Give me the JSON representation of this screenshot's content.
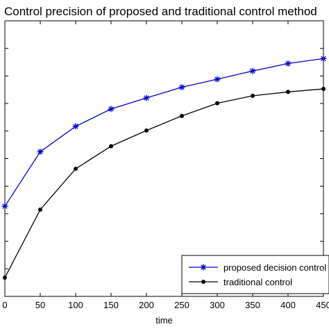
{
  "chart_data": {
    "type": "line",
    "title": "Control precision of proposed and traditional control method",
    "xlabel": "time",
    "ylabel": "",
    "x": [
      0,
      50,
      100,
      150,
      200,
      250,
      300,
      350,
      400,
      450
    ],
    "x_ticks": [
      "0",
      "50",
      "100",
      "150",
      "200",
      "250",
      "300",
      "350",
      "400",
      "450"
    ],
    "xlim": [
      0,
      450
    ],
    "ylim": [
      0,
      1
    ],
    "y_ticks": [
      0.1,
      0.2,
      0.3,
      0.4,
      0.5,
      0.6,
      0.7,
      0.8,
      0.9
    ],
    "series": [
      {
        "name": "proposed decision control",
        "color": "#0000cc",
        "marker": "star",
        "values": [
          0.327,
          0.525,
          0.617,
          0.68,
          0.72,
          0.759,
          0.788,
          0.818,
          0.845,
          0.863
        ]
      },
      {
        "name": "traditional control",
        "color": "#000000",
        "marker": "dot",
        "values": [
          0.068,
          0.315,
          0.463,
          0.545,
          0.602,
          0.655,
          0.701,
          0.728,
          0.742,
          0.753
        ]
      }
    ],
    "grid": false,
    "legend": "bottom-right"
  }
}
